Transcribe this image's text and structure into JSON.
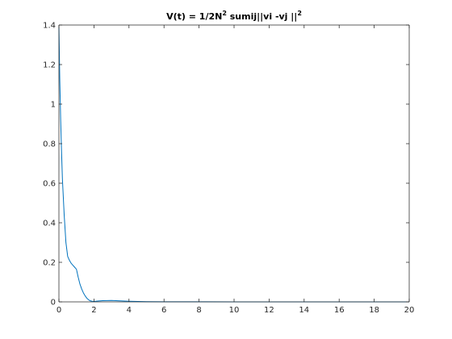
{
  "chart_data": {
    "type": "line",
    "title": "V(t) = 1/2N",
    "title_sup1": "2",
    "title_mid": " sumij||vi -vj ||",
    "title_sup2": "2",
    "xlabel": "",
    "ylabel": "",
    "xlim": [
      0,
      20
    ],
    "ylim": [
      0,
      1.4
    ],
    "xticks": [
      "0",
      "2",
      "4",
      "6",
      "8",
      "10",
      "12",
      "14",
      "16",
      "18",
      "20"
    ],
    "yticks": [
      "0",
      "0.2",
      "0.4",
      "0.6",
      "0.8",
      "1",
      "1.2",
      "1.4"
    ],
    "grid": false,
    "series": [
      {
        "color": "#0072bd",
        "x": [
          0,
          0.05,
          0.1,
          0.15,
          0.2,
          0.3,
          0.4,
          0.5,
          0.6,
          0.7,
          0.8,
          0.9,
          1.0,
          1.1,
          1.2,
          1.3,
          1.4,
          1.5,
          1.6,
          1.7,
          1.8,
          1.9,
          2.0,
          2.2,
          2.5,
          3.0,
          3.5,
          4.0,
          4.5,
          5,
          6,
          8,
          10,
          12,
          14,
          16,
          18,
          20
        ],
        "y": [
          1.39,
          1.12,
          0.92,
          0.76,
          0.62,
          0.44,
          0.3,
          0.23,
          0.21,
          0.195,
          0.185,
          0.175,
          0.165,
          0.125,
          0.09,
          0.065,
          0.045,
          0.03,
          0.018,
          0.01,
          0.005,
          0.003,
          0.002,
          0.004,
          0.006,
          0.007,
          0.005,
          0.003,
          0.002,
          0.001,
          0.0005,
          0.0003,
          0.0002,
          0.0001,
          0.0001,
          0.0001,
          0.0001,
          0.0001
        ]
      }
    ]
  }
}
